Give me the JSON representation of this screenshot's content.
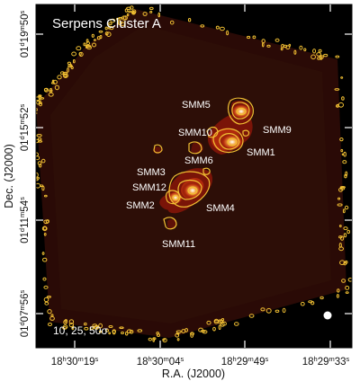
{
  "figure": {
    "title": "Serpens Cluster A",
    "contour_levels": "10, 25, 50σ",
    "x_axis": {
      "label": "R.A. (J2000)",
      "ticks": [
        {
          "h": "18",
          "m": "30",
          "s": "19"
        },
        {
          "h": "18",
          "m": "30",
          "s": "04"
        },
        {
          "h": "18",
          "m": "29",
          "s": "49"
        },
        {
          "h": "18",
          "m": "29",
          "s": "33"
        }
      ]
    },
    "y_axis": {
      "label": "Dec. (J2000)",
      "ticks": [
        {
          "d": "01",
          "dm": "19",
          "ss": "50"
        },
        {
          "d": "01",
          "dm": "15",
          "ss": "52"
        },
        {
          "d": "01",
          "dm": "11",
          "ss": "54"
        },
        {
          "d": "01",
          "dm": "07",
          "ss": "56"
        }
      ]
    },
    "sources": [
      "SMM5",
      "SMM9",
      "SMM10",
      "SMM1",
      "SMM6",
      "SMM3",
      "SMM12",
      "SMM2",
      "SMM4",
      "SMM11"
    ],
    "colors": {
      "background": "#000000",
      "map": "#2a0a06",
      "emission_low": "#7a1408",
      "emission_mid": "#c2300e",
      "contour": "#f2c033",
      "text": "#ffffff"
    }
  }
}
